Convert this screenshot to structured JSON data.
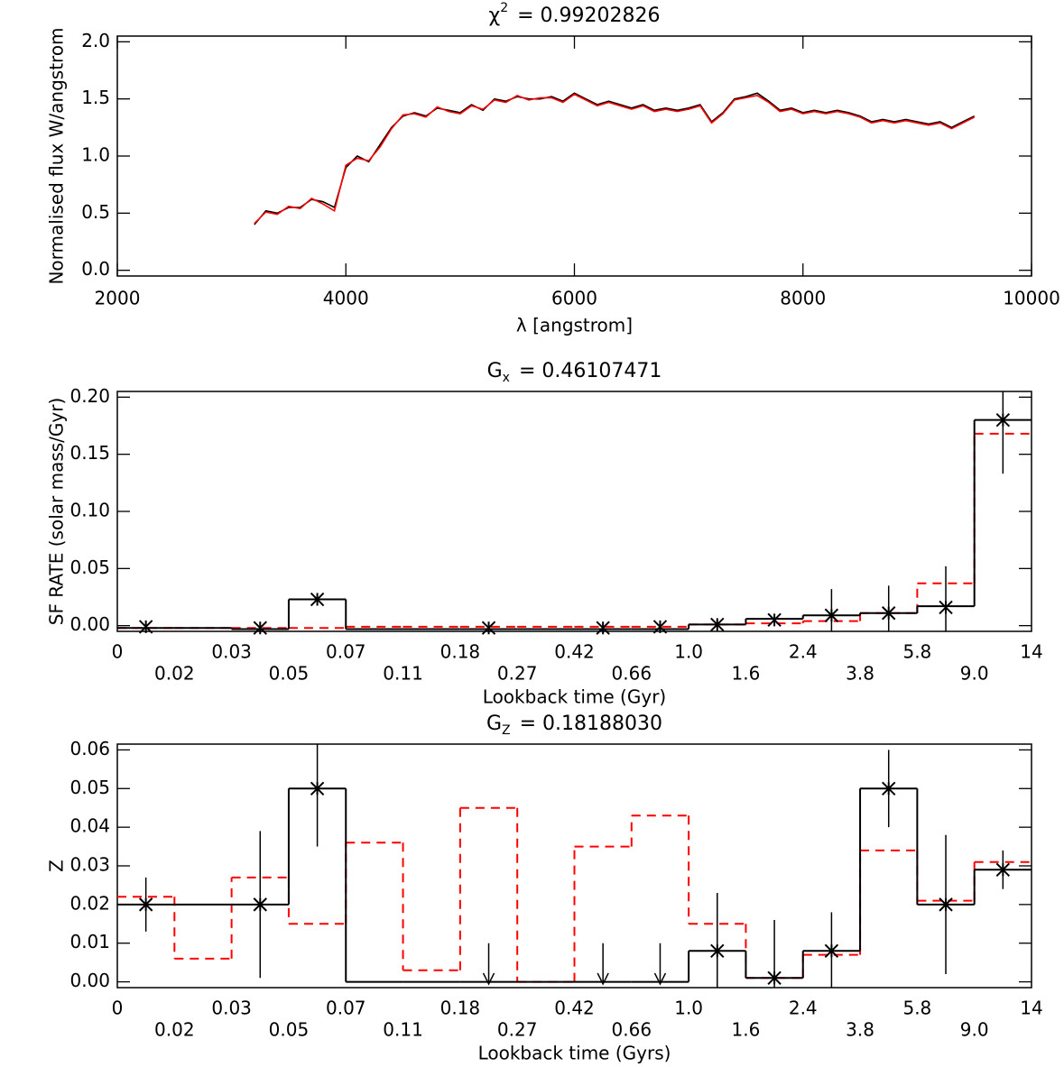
{
  "chart_data": [
    {
      "type": "line",
      "title": "χ",
      "title_superscript": "2",
      "title_value": "= 0.99202826",
      "xlabel": "λ [angstrom]",
      "ylabel": "Normalised flux W/angstrom",
      "xlim": [
        2000,
        10000
      ],
      "ylim": [
        -0.05,
        2.05
      ],
      "xticks": [
        2000,
        4000,
        6000,
        8000,
        10000
      ],
      "yticks": [
        {
          "value": 0,
          "label": "0.0"
        },
        {
          "value": 0.5,
          "label": "0.5"
        },
        {
          "value": 1,
          "label": "1.0"
        },
        {
          "value": 1.5,
          "label": "1.5"
        },
        {
          "value": 2,
          "label": "2.0"
        }
      ],
      "x": [
        3200,
        3300,
        3400,
        3500,
        3600,
        3700,
        3800,
        3900,
        4000,
        4100,
        4200,
        4300,
        4400,
        4500,
        4600,
        4700,
        4800,
        4900,
        5000,
        5100,
        5200,
        5300,
        5400,
        5500,
        5600,
        5700,
        5800,
        5900,
        6000,
        6100,
        6200,
        6300,
        6400,
        6500,
        6600,
        6700,
        6800,
        6900,
        7000,
        7100,
        7200,
        7300,
        7400,
        7500,
        7600,
        7700,
        7800,
        7900,
        8000,
        8100,
        8200,
        8300,
        8400,
        8500,
        8600,
        8700,
        8800,
        8900,
        9000,
        9100,
        9200,
        9300,
        9400,
        9500
      ],
      "series": [
        {
          "color": "#000000",
          "values": [
            0.4,
            0.52,
            0.5,
            0.55,
            0.55,
            0.62,
            0.6,
            0.55,
            0.9,
            1.0,
            0.95,
            1.1,
            1.25,
            1.35,
            1.38,
            1.35,
            1.42,
            1.4,
            1.38,
            1.45,
            1.4,
            1.5,
            1.48,
            1.52,
            1.5,
            1.5,
            1.52,
            1.48,
            1.55,
            1.5,
            1.45,
            1.48,
            1.45,
            1.42,
            1.45,
            1.4,
            1.42,
            1.4,
            1.42,
            1.45,
            1.3,
            1.38,
            1.5,
            1.52,
            1.55,
            1.48,
            1.4,
            1.42,
            1.38,
            1.4,
            1.38,
            1.4,
            1.38,
            1.35,
            1.3,
            1.32,
            1.3,
            1.32,
            1.3,
            1.28,
            1.3,
            1.25,
            1.3,
            1.35
          ]
        },
        {
          "color": "#ff0000",
          "values": [
            0.41,
            0.51,
            0.49,
            0.56,
            0.54,
            0.63,
            0.58,
            0.52,
            0.92,
            0.98,
            0.96,
            1.08,
            1.24,
            1.36,
            1.37,
            1.34,
            1.43,
            1.39,
            1.37,
            1.44,
            1.41,
            1.49,
            1.47,
            1.53,
            1.49,
            1.51,
            1.51,
            1.47,
            1.54,
            1.49,
            1.44,
            1.47,
            1.44,
            1.41,
            1.44,
            1.39,
            1.41,
            1.39,
            1.41,
            1.44,
            1.29,
            1.37,
            1.49,
            1.51,
            1.53,
            1.47,
            1.39,
            1.41,
            1.37,
            1.39,
            1.37,
            1.39,
            1.37,
            1.34,
            1.29,
            1.31,
            1.29,
            1.31,
            1.29,
            1.27,
            1.29,
            1.24,
            1.29,
            1.34
          ]
        }
      ]
    },
    {
      "type": "step",
      "title": "G",
      "title_subscript": "x",
      "title_value": "= 0.46107471",
      "xlabel": "Lookback time (Gyr)",
      "ylabel": "SF RATE (solar mass/Gyr)",
      "bin_edges": [
        "0",
        "0.02",
        "0.03",
        "0.05",
        "0.07",
        "0.11",
        "0.18",
        "0.27",
        "0.42",
        "0.66",
        "1.0",
        "1.6",
        "2.4",
        "3.8",
        "5.8",
        "9.0",
        "14"
      ],
      "ylim": [
        -0.005,
        0.205
      ],
      "yticks": [
        {
          "value": 0,
          "label": "0.00"
        },
        {
          "value": 0.05,
          "label": "0.05"
        },
        {
          "value": 0.1,
          "label": "0.10"
        },
        {
          "value": 0.15,
          "label": "0.15"
        },
        {
          "value": 0.2,
          "label": "0.20"
        }
      ],
      "series": [
        {
          "color": "#ff0000",
          "dashed": true,
          "values": [
            -0.002,
            -0.002,
            -0.002,
            -0.002,
            -0.001,
            -0.001,
            -0.001,
            -0.001,
            -0.001,
            -0.001,
            0.001,
            0.002,
            0.004,
            0.011,
            0.037,
            0.168
          ]
        },
        {
          "color": "#000000",
          "dashed": false,
          "values": [
            -0.002,
            -0.002,
            -0.003,
            0.023,
            -0.003,
            -0.003,
            -0.003,
            -0.003,
            -0.003,
            -0.003,
            0.001,
            0.006,
            0.009,
            0.011,
            0.017,
            0.18
          ]
        }
      ],
      "points": {
        "color": "#000000",
        "values": [
          -0.001,
          null,
          -0.002,
          0.023,
          null,
          null,
          -0.002,
          null,
          -0.002,
          -0.001,
          0.001,
          0.005,
          0.009,
          0.011,
          0.016,
          0.18
        ],
        "errors": [
          0,
          null,
          0,
          0,
          null,
          null,
          0,
          null,
          0,
          0,
          0,
          0,
          0.023,
          0.024,
          0.036,
          0.047
        ]
      }
    },
    {
      "type": "step",
      "title": "G",
      "title_subscript": "Z",
      "title_value": "= 0.18188030",
      "xlabel": "Lookback time (Gyrs)",
      "ylabel": "Z",
      "bin_edges": [
        "0",
        "0.02",
        "0.03",
        "0.05",
        "0.07",
        "0.11",
        "0.18",
        "0.27",
        "0.42",
        "0.66",
        "1.0",
        "1.6",
        "2.4",
        "3.8",
        "5.8",
        "9.0",
        "14"
      ],
      "ylim": [
        -0.0015,
        0.0615
      ],
      "yticks": [
        {
          "value": 0,
          "label": "0.00"
        },
        {
          "value": 0.01,
          "label": "0.01"
        },
        {
          "value": 0.02,
          "label": "0.02"
        },
        {
          "value": 0.03,
          "label": "0.03"
        },
        {
          "value": 0.04,
          "label": "0.04"
        },
        {
          "value": 0.05,
          "label": "0.05"
        },
        {
          "value": 0.06,
          "label": "0.06"
        }
      ],
      "series": [
        {
          "color": "#ff0000",
          "dashed": true,
          "values": [
            0.022,
            0.006,
            0.027,
            0.015,
            0.036,
            0.003,
            0.045,
            0,
            0.035,
            0.043,
            0.015,
            0.001,
            0.007,
            0.034,
            0.021,
            0.031
          ]
        },
        {
          "color": "#000000",
          "dashed": false,
          "values": [
            0.02,
            0.02,
            0.02,
            0.05,
            0,
            0,
            0,
            0,
            0,
            0,
            0.008,
            0.001,
            0.008,
            0.05,
            0.02,
            0.029
          ]
        }
      ],
      "points": {
        "color": "#000000",
        "values": [
          0.02,
          null,
          0.02,
          0.05,
          null,
          null,
          null,
          null,
          null,
          null,
          0.008,
          0.001,
          0.008,
          0.05,
          0.02,
          0.029
        ],
        "errors": [
          0.007,
          null,
          0.019,
          0.015,
          null,
          null,
          null,
          null,
          null,
          null,
          0.015,
          0.015,
          0.01,
          0.01,
          0.018,
          0.005
        ]
      },
      "upper_limits": [
        null,
        null,
        null,
        null,
        null,
        null,
        0.01,
        null,
        0.01,
        0.01,
        null,
        null,
        null,
        null,
        null,
        null
      ]
    }
  ]
}
